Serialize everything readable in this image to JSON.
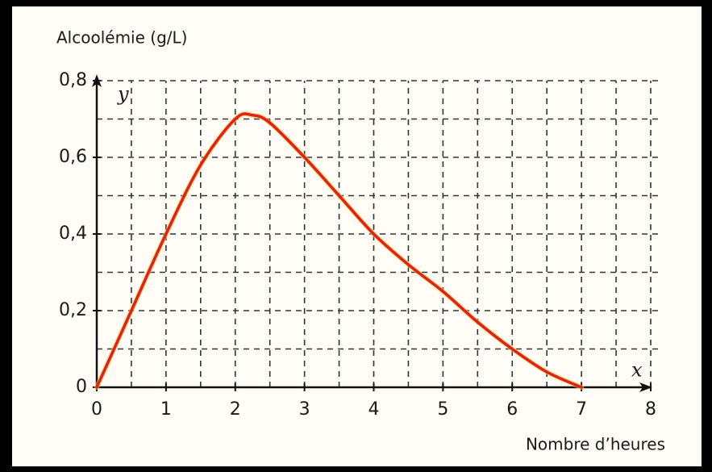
{
  "chart_data": {
    "type": "line",
    "y_label": "Alcoolémie (g/L)",
    "x_label": "Nombre d’heures",
    "x_axis_symbol": "x",
    "y_axis_symbol": "y",
    "x": [
      0,
      0.5,
      1,
      1.5,
      2,
      2.25,
      2.5,
      3,
      3.5,
      4,
      4.5,
      5,
      5.5,
      6,
      6.5,
      7
    ],
    "series": [
      {
        "color": "#e0201c",
        "values": [
          0,
          0.2,
          0.4,
          0.58,
          0.7,
          0.71,
          0.69,
          0.6,
          0.5,
          0.4,
          0.32,
          0.25,
          0.17,
          0.1,
          0.04,
          0
        ]
      }
    ],
    "xlim": [
      0,
      8
    ],
    "ylim": [
      0,
      0.8
    ],
    "xticks": [
      0,
      1,
      2,
      3,
      4,
      5,
      6,
      7,
      8
    ],
    "yticks": [
      0,
      {
        "value": 0.2,
        "label": "0,2"
      },
      {
        "value": 0.4,
        "label": "0,4"
      },
      {
        "value": 0.6,
        "label": "0,6"
      },
      {
        "value": 0.8,
        "label": "0,8"
      }
    ],
    "xgrid": [
      0.5,
      1,
      1.5,
      2,
      2.5,
      3,
      3.5,
      4,
      4.5,
      5,
      5.5,
      6,
      6.5,
      7,
      7.5,
      8
    ],
    "ygrid": [
      0.1,
      0.2,
      0.3,
      0.4,
      0.5,
      0.6,
      0.7,
      0.8
    ],
    "grid": true
  }
}
